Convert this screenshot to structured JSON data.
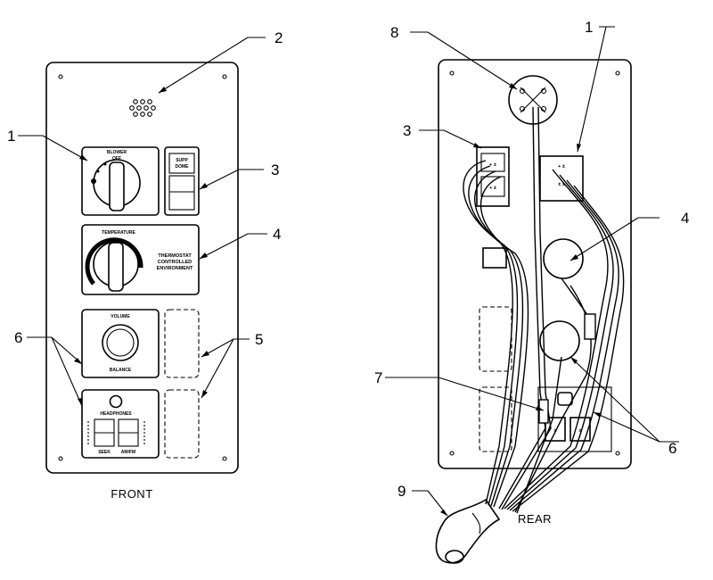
{
  "views": {
    "front": {
      "label": "FRONT"
    },
    "rear": {
      "label": "REAR"
    }
  },
  "front_panel": {
    "blower_label": "BLOWER",
    "blower_off": "OFF",
    "dome_label_top": "SUPP",
    "dome_label_bottom": "DOME",
    "temperature_label": "TEMPERATURE",
    "thermostat_line1": "THERMOSTAT",
    "thermostat_line2": "CONTROLLED",
    "thermostat_line3": "ENVIRONMENT",
    "volume_label": "VOLUME",
    "balance_label": "BALANCE",
    "headphones_label": "HEADPHONES",
    "seek_label": "SEEK",
    "amfm_label": "AM/FM"
  },
  "callouts": {
    "front": [
      "1",
      "2",
      "3",
      "4",
      "5",
      "6"
    ],
    "rear": [
      "1",
      "3",
      "4",
      "6",
      "7",
      "8",
      "9"
    ]
  }
}
